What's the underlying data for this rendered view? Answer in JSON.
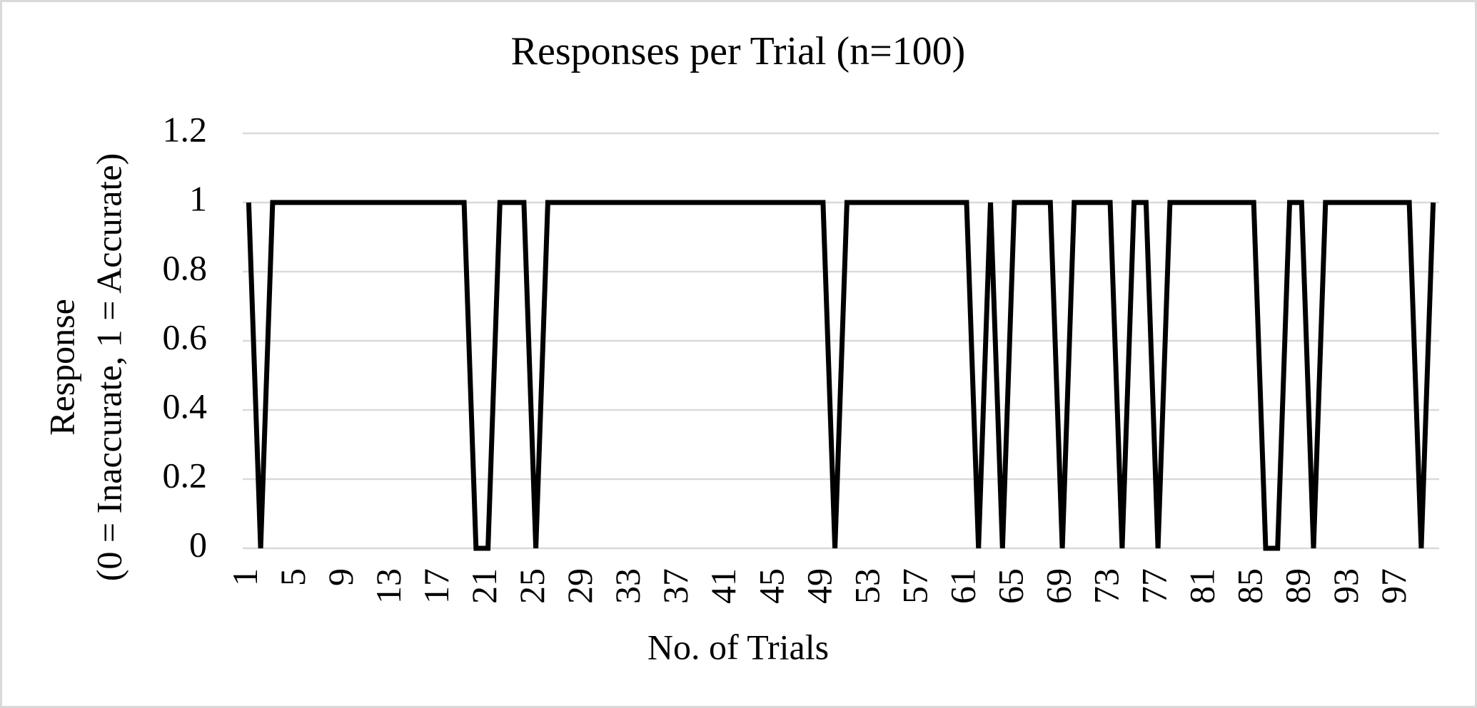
{
  "chart_data": {
    "type": "line",
    "title": "Responses per Trial (n=100)",
    "x_label": "No. of Trials",
    "y_label": [
      "Response",
      "(0 = Inaccurate, 1 = Accurate)"
    ],
    "categories": [
      "1",
      null,
      null,
      null,
      "5",
      null,
      null,
      null,
      "9",
      null,
      null,
      null,
      "13",
      null,
      null,
      null,
      "17",
      null,
      null,
      null,
      "21",
      null,
      null,
      null,
      "25",
      null,
      null,
      null,
      "29",
      null,
      null,
      null,
      "33",
      null,
      null,
      null,
      "37",
      null,
      null,
      null,
      "41",
      null,
      null,
      null,
      "45",
      null,
      null,
      null,
      "49",
      null,
      null,
      null,
      "53",
      null,
      null,
      null,
      "57",
      null,
      null,
      null,
      "61",
      null,
      null,
      null,
      "65",
      null,
      null,
      null,
      "69",
      null,
      null,
      null,
      "73",
      null,
      null,
      null,
      "77",
      null,
      null,
      null,
      "81",
      null,
      null,
      null,
      "85",
      null,
      null,
      null,
      "89",
      null,
      null,
      null,
      "93",
      null,
      null,
      null,
      "97",
      null,
      null,
      null
    ],
    "series": [
      {
        "color": "#000000",
        "values": [
          1,
          0,
          1,
          1,
          1,
          1,
          1,
          1,
          1,
          1,
          1,
          1,
          1,
          1,
          1,
          1,
          1,
          1,
          1,
          0,
          0,
          1,
          1,
          1,
          0,
          1,
          1,
          1,
          1,
          1,
          1,
          1,
          1,
          1,
          1,
          1,
          1,
          1,
          1,
          1,
          1,
          1,
          1,
          1,
          1,
          1,
          1,
          1,
          1,
          0,
          1,
          1,
          1,
          1,
          1,
          1,
          1,
          1,
          1,
          1,
          1,
          0,
          1,
          0,
          1,
          1,
          1,
          1,
          0,
          1,
          1,
          1,
          1,
          0,
          1,
          1,
          0,
          1,
          1,
          1,
          1,
          1,
          1,
          1,
          1,
          0,
          0,
          1,
          1,
          0,
          1,
          1,
          1,
          1,
          1,
          1,
          1,
          1,
          0,
          1
        ]
      }
    ],
    "ylim": [
      0,
      1.2
    ],
    "yticks": [
      0,
      0.2,
      0.4,
      0.6,
      0.8,
      1,
      1.2
    ],
    "grid": true
  }
}
